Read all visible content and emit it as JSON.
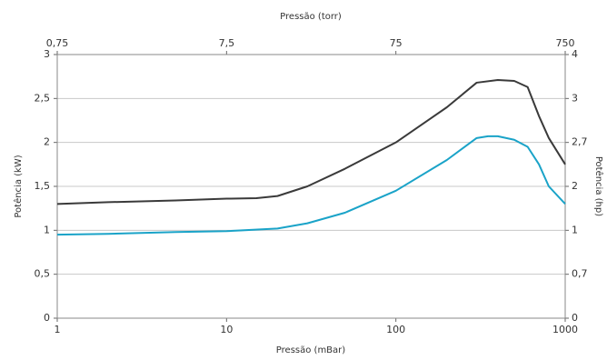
{
  "chart_data": {
    "type": "line",
    "x_label": "Pressão (mBar)",
    "x2_label": "Pressão (torr)",
    "y_label": "Potência (kW)",
    "y2_label": "Potência (hp)",
    "x_scale": "log",
    "xlim": [
      1,
      1000
    ],
    "xticks": [
      1,
      10,
      100,
      1000
    ],
    "x2lim": [
      0.75,
      750
    ],
    "x2ticks": [
      {
        "value": 0.75,
        "label": "0,75"
      },
      {
        "value": 7.5,
        "label": "7,5"
      },
      75,
      750
    ],
    "ylim": [
      0,
      3
    ],
    "yticks": [
      0,
      {
        "value": 0.5,
        "label": "0,5"
      },
      1,
      {
        "value": 1.5,
        "label": "1,5"
      },
      2,
      {
        "value": 2.5,
        "label": "2,5"
      },
      3
    ],
    "y2lim": [
      0,
      4
    ],
    "y2ticks": [
      0,
      {
        "value": 0.7,
        "label": "0,7"
      },
      1,
      2,
      {
        "value": 2.7,
        "label": "2,7"
      },
      3,
      4
    ],
    "grid": true,
    "series": [
      {
        "color": "#3a3a3a",
        "x": [
          1,
          2,
          5,
          10,
          15,
          20,
          30,
          50,
          100,
          200,
          300,
          400,
          500,
          600,
          700,
          800,
          1000
        ],
        "values": [
          1.3,
          1.32,
          1.34,
          1.36,
          1.365,
          1.39,
          1.5,
          1.7,
          2.0,
          2.4,
          2.68,
          2.71,
          2.7,
          2.63,
          2.3,
          2.05,
          1.75
        ]
      },
      {
        "color": "#1aa3c8",
        "x": [
          1,
          2,
          5,
          10,
          20,
          30,
          50,
          100,
          200,
          300,
          350,
          400,
          500,
          600,
          700,
          800,
          1000
        ],
        "values": [
          0.95,
          0.96,
          0.98,
          0.99,
          1.02,
          1.08,
          1.2,
          1.45,
          1.8,
          2.05,
          2.07,
          2.07,
          2.03,
          1.95,
          1.75,
          1.5,
          1.3
        ]
      }
    ]
  }
}
